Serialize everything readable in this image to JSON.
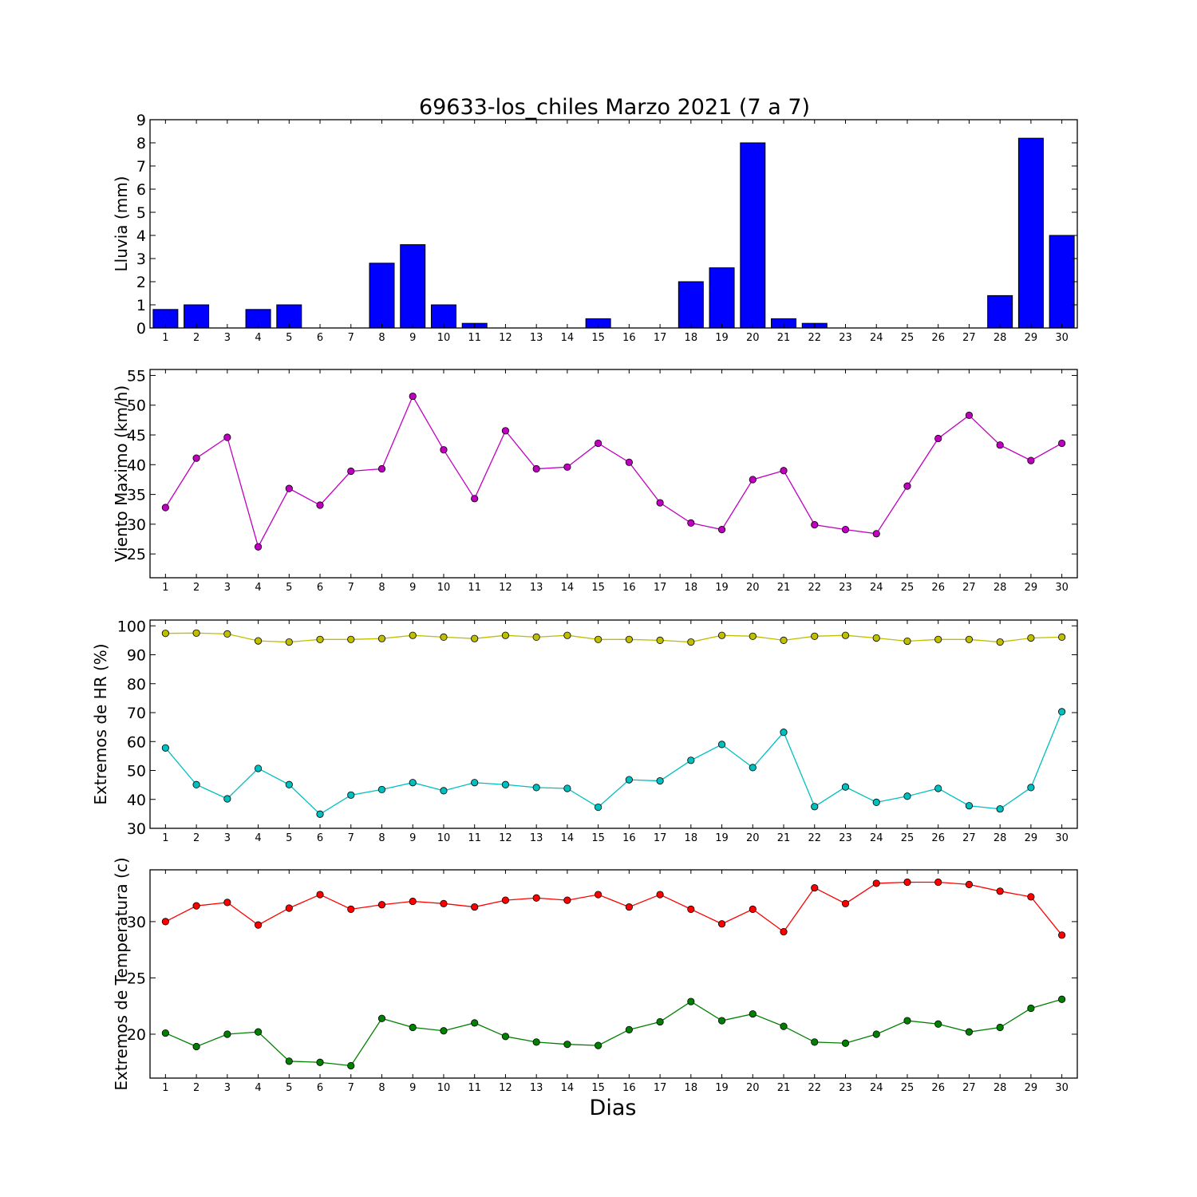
{
  "title": "69633-los_chiles Marzo 2021  (7 a 7)",
  "xlabel": "Dias",
  "chart_data": [
    {
      "type": "bar",
      "ylabel": "Lluvia (mm)",
      "ylim": [
        0,
        9
      ],
      "yticks": [
        0,
        1,
        2,
        3,
        4,
        5,
        6,
        7,
        8,
        9
      ],
      "categories": [
        1,
        2,
        3,
        4,
        5,
        6,
        7,
        8,
        9,
        10,
        11,
        12,
        13,
        14,
        15,
        16,
        17,
        18,
        19,
        20,
        21,
        22,
        23,
        24,
        25,
        26,
        27,
        28,
        29,
        30
      ],
      "series": [
        {
          "color": "#0000ff",
          "values": [
            0.8,
            1.0,
            0.0,
            0.8,
            1.0,
            0.0,
            0.0,
            2.8,
            3.6,
            1.0,
            0.2,
            0.0,
            0.0,
            0.0,
            0.4,
            0.0,
            0.0,
            2.0,
            2.6,
            8.0,
            0.4,
            0.2,
            0.0,
            0.0,
            0.0,
            0.0,
            0.0,
            1.4,
            8.2,
            4.0
          ]
        }
      ]
    },
    {
      "type": "line",
      "ylabel": "Viento Maximo (km/h)",
      "ylim": [
        21,
        56
      ],
      "yticks": [
        25,
        30,
        35,
        40,
        45,
        50,
        55
      ],
      "categories": [
        1,
        2,
        3,
        4,
        5,
        6,
        7,
        8,
        9,
        10,
        11,
        12,
        13,
        14,
        15,
        16,
        17,
        18,
        19,
        20,
        21,
        22,
        23,
        24,
        25,
        26,
        27,
        28,
        29,
        30
      ],
      "series": [
        {
          "color": "#bf00bf",
          "values": [
            32.8,
            41.1,
            44.6,
            26.2,
            36.0,
            33.2,
            38.9,
            39.3,
            51.5,
            42.5,
            34.3,
            45.7,
            39.3,
            39.6,
            43.6,
            40.4,
            33.6,
            30.2,
            29.1,
            37.5,
            39.0,
            29.9,
            29.1,
            28.4,
            36.4,
            44.4,
            48.3,
            43.3,
            40.7,
            43.6
          ]
        }
      ]
    },
    {
      "type": "line",
      "ylabel": "Extremos de HR (%)",
      "ylim": [
        30,
        102
      ],
      "yticks": [
        30,
        40,
        50,
        60,
        70,
        80,
        90,
        100
      ],
      "categories": [
        1,
        2,
        3,
        4,
        5,
        6,
        7,
        8,
        9,
        10,
        11,
        12,
        13,
        14,
        15,
        16,
        17,
        18,
        19,
        20,
        21,
        22,
        23,
        24,
        25,
        26,
        27,
        28,
        29,
        30
      ],
      "series": [
        {
          "color": "#bfbf00",
          "values": [
            97.4,
            97.5,
            97.2,
            94.8,
            94.4,
            95.3,
            95.3,
            95.6,
            96.7,
            96.1,
            95.6,
            96.7,
            96.1,
            96.7,
            95.3,
            95.3,
            95.0,
            94.4,
            96.7,
            96.4,
            95.0,
            96.4,
            96.7,
            95.8,
            94.7,
            95.3,
            95.3,
            94.4,
            95.8,
            96.1
          ]
        },
        {
          "color": "#00bfbf",
          "values": [
            57.8,
            45.1,
            40.2,
            50.7,
            45.1,
            34.9,
            41.5,
            43.4,
            45.8,
            43.0,
            45.8,
            45.1,
            44.1,
            43.8,
            37.3,
            46.8,
            46.4,
            53.5,
            59.0,
            51.0,
            63.2,
            37.5,
            44.3,
            39.0,
            41.1,
            43.8,
            37.8,
            36.7,
            44.1,
            70.3
          ]
        }
      ]
    },
    {
      "type": "line",
      "ylabel": "Extremos de Temperatura (c)",
      "ylim": [
        16.1,
        34.6
      ],
      "yticks": [
        20,
        25,
        30
      ],
      "categories": [
        1,
        2,
        3,
        4,
        5,
        6,
        7,
        8,
        9,
        10,
        11,
        12,
        13,
        14,
        15,
        16,
        17,
        18,
        19,
        20,
        21,
        22,
        23,
        24,
        25,
        26,
        27,
        28,
        29,
        30
      ],
      "series": [
        {
          "color": "#ff0000",
          "values": [
            30.0,
            31.4,
            31.7,
            29.7,
            31.2,
            32.4,
            31.1,
            31.5,
            31.8,
            31.6,
            31.3,
            31.9,
            32.1,
            31.9,
            32.4,
            31.3,
            32.4,
            31.1,
            29.8,
            31.1,
            29.1,
            33.0,
            31.6,
            33.4,
            33.5,
            33.5,
            33.3,
            32.7,
            32.2,
            28.8
          ]
        },
        {
          "color": "#008000",
          "values": [
            20.1,
            18.9,
            20.0,
            20.2,
            17.6,
            17.5,
            17.2,
            21.4,
            20.6,
            20.3,
            21.0,
            19.8,
            19.3,
            19.1,
            19.0,
            20.4,
            21.1,
            22.9,
            21.2,
            21.8,
            20.7,
            19.3,
            19.2,
            20.0,
            21.2,
            20.9,
            20.2,
            20.6,
            22.3,
            23.1
          ]
        }
      ]
    }
  ]
}
